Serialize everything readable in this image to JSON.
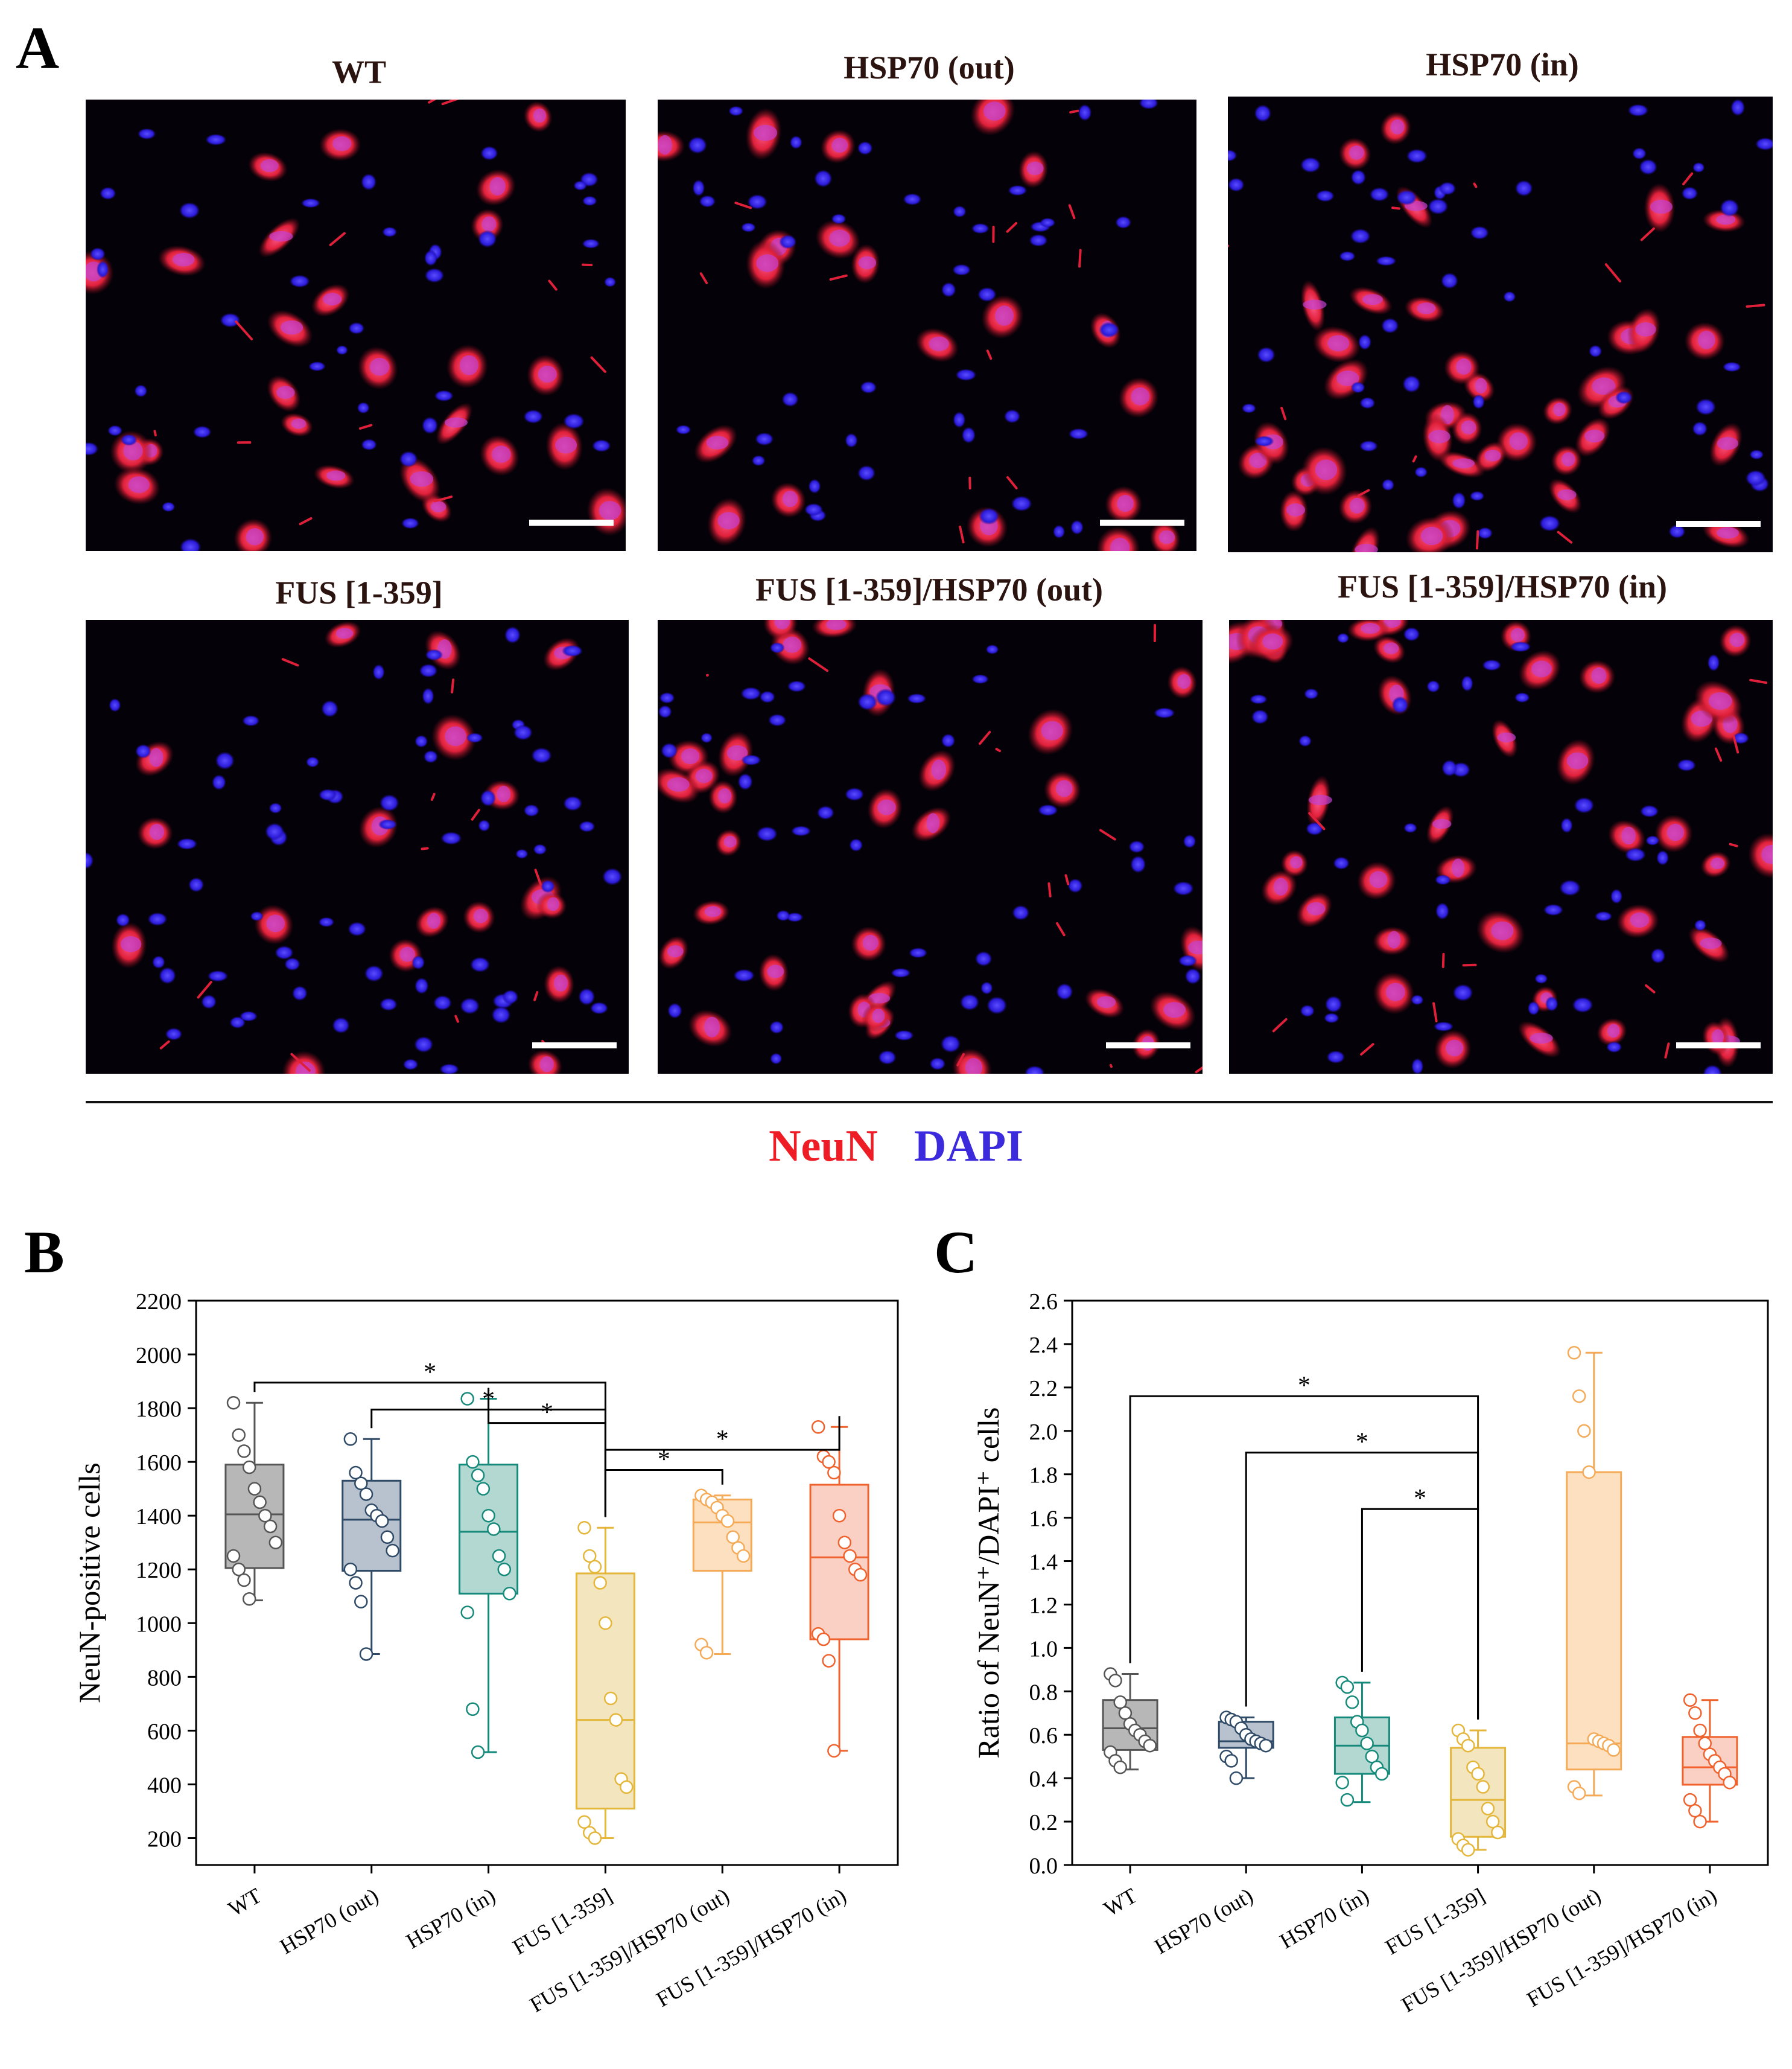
{
  "panel_a": {
    "letter": "A",
    "images": [
      {
        "title": "WT",
        "nucleus_count": 40,
        "neuron_count": 26,
        "seed": 11
      },
      {
        "title": "HSP70 (out)",
        "nucleus_count": 44,
        "neuron_count": 20,
        "seed": 23
      },
      {
        "title": "HSP70 (in)",
        "nucleus_count": 52,
        "neuron_count": 38,
        "seed": 37
      },
      {
        "title": "FUS [1-359]",
        "nucleus_count": 70,
        "neuron_count": 18,
        "seed": 41
      },
      {
        "title": "FUS [1-359]/HSP70 (out)",
        "nucleus_count": 50,
        "neuron_count": 30,
        "seed": 53
      },
      {
        "title": "FUS [1-359]/HSP70 (in)",
        "nucleus_count": 48,
        "neuron_count": 40,
        "seed": 67
      }
    ],
    "stain_red": "NeuN",
    "stain_blue": "DAPI",
    "colors": {
      "neun": "#ee1c25",
      "dapi": "#3b2bdc"
    }
  },
  "chart_data": [
    {
      "panel": "B",
      "type": "box",
      "ylabel": "NeuN-positive cells",
      "ylim": [
        100,
        2200
      ],
      "yticks": [
        200,
        400,
        600,
        800,
        1000,
        1200,
        1400,
        1600,
        1800,
        2000,
        2200
      ],
      "categories": [
        "WT",
        "HSP70 (out)",
        "HSP70 (in)",
        "FUS [1-359]",
        "FUS [1-359]/HSP70 (out)",
        "FUS [1-359]/HSP70 (in)"
      ],
      "colors": [
        "#555555",
        "#2e4a66",
        "#15897a",
        "#e4b63a",
        "#f5aa58",
        "#f0622d"
      ],
      "fills": [
        "#b7b7b7",
        "#b8c2cf",
        "#b3d8d1",
        "#f3e5bd",
        "#fde0c0",
        "#fbd0c4"
      ],
      "boxes": [
        {
          "min": 1085,
          "q1": 1205,
          "median": 1405,
          "q3": 1590,
          "max": 1820
        },
        {
          "min": 885,
          "q1": 1195,
          "median": 1385,
          "q3": 1530,
          "max": 1685
        },
        {
          "min": 520,
          "q1": 1110,
          "median": 1340,
          "q3": 1590,
          "max": 1835
        },
        {
          "min": 200,
          "q1": 310,
          "median": 640,
          "q3": 1185,
          "max": 1355
        },
        {
          "min": 885,
          "q1": 1195,
          "median": 1375,
          "q3": 1460,
          "max": 1475
        },
        {
          "min": 525,
          "q1": 940,
          "median": 1245,
          "q3": 1515,
          "max": 1730
        }
      ],
      "points": [
        [
          1820,
          1700,
          1640,
          1580,
          1500,
          1450,
          1400,
          1360,
          1300,
          1250,
          1200,
          1160,
          1090
        ],
        [
          1685,
          1560,
          1520,
          1480,
          1420,
          1400,
          1380,
          1320,
          1270,
          1200,
          1150,
          1080,
          885
        ],
        [
          1835,
          1600,
          1550,
          1500,
          1400,
          1350,
          1250,
          1200,
          1110,
          1040,
          680,
          520
        ],
        [
          1355,
          1250,
          1210,
          1150,
          1000,
          720,
          640,
          420,
          390,
          260,
          220,
          200
        ],
        [
          1475,
          1460,
          1450,
          1430,
          1400,
          1380,
          1320,
          1280,
          1250,
          920,
          890
        ],
        [
          1730,
          1620,
          1600,
          1560,
          1400,
          1300,
          1250,
          1200,
          1180,
          960,
          940,
          860,
          525
        ]
      ],
      "significance": [
        {
          "from": 0,
          "to": 3,
          "y": 1895,
          "label": "*"
        },
        {
          "from": 1,
          "to": 3,
          "y": 1795,
          "label": "*"
        },
        {
          "from": 2,
          "to": 3,
          "y": 1745,
          "label": "*"
        },
        {
          "from": 3,
          "to": 5,
          "y": 1645,
          "label": "*"
        },
        {
          "from": 3,
          "to": 4,
          "y": 1570,
          "label": "*"
        }
      ]
    },
    {
      "panel": "C",
      "type": "box",
      "ylabel": "Ratio of NeuN⁺/DAPI⁺ cells",
      "ylim": [
        0,
        2.6
      ],
      "yticks": [
        0.0,
        0.2,
        0.4,
        0.6,
        0.8,
        1.0,
        1.2,
        1.4,
        1.6,
        1.8,
        2.0,
        2.2,
        2.4,
        2.6
      ],
      "categories": [
        "WT",
        "HSP70 (out)",
        "HSP70 (in)",
        "FUS [1-359]",
        "FUS [1-359]/HSP70 (out)",
        "FUS [1-359]/HSP70 (in)"
      ],
      "colors": [
        "#555555",
        "#2e4a66",
        "#15897a",
        "#e4b63a",
        "#f5aa58",
        "#f0622d"
      ],
      "fills": [
        "#b7b7b7",
        "#b8c2cf",
        "#b3d8d1",
        "#f3e5bd",
        "#fde0c0",
        "#fbd0c4"
      ],
      "boxes": [
        {
          "min": 0.44,
          "q1": 0.53,
          "median": 0.63,
          "q3": 0.76,
          "max": 0.88
        },
        {
          "min": 0.4,
          "q1": 0.54,
          "median": 0.57,
          "q3": 0.66,
          "max": 0.68
        },
        {
          "min": 0.29,
          "q1": 0.42,
          "median": 0.55,
          "q3": 0.68,
          "max": 0.84
        },
        {
          "min": 0.07,
          "q1": 0.13,
          "median": 0.3,
          "q3": 0.54,
          "max": 0.62
        },
        {
          "min": 0.32,
          "q1": 0.44,
          "median": 0.56,
          "q3": 1.81,
          "max": 2.36
        },
        {
          "min": 0.2,
          "q1": 0.37,
          "median": 0.45,
          "q3": 0.59,
          "max": 0.76
        }
      ],
      "points": [
        [
          0.88,
          0.85,
          0.75,
          0.7,
          0.65,
          0.62,
          0.6,
          0.57,
          0.55,
          0.52,
          0.48,
          0.45
        ],
        [
          0.68,
          0.67,
          0.66,
          0.63,
          0.6,
          0.58,
          0.57,
          0.56,
          0.55,
          0.5,
          0.48,
          0.4
        ],
        [
          0.84,
          0.82,
          0.75,
          0.66,
          0.62,
          0.56,
          0.5,
          0.45,
          0.42,
          0.38,
          0.3
        ],
        [
          0.62,
          0.58,
          0.55,
          0.45,
          0.42,
          0.36,
          0.26,
          0.2,
          0.15,
          0.12,
          0.09,
          0.07
        ],
        [
          2.36,
          2.16,
          2.0,
          1.81,
          0.58,
          0.57,
          0.56,
          0.55,
          0.53,
          0.36,
          0.33
        ],
        [
          0.76,
          0.7,
          0.62,
          0.56,
          0.51,
          0.48,
          0.45,
          0.42,
          0.38,
          0.3,
          0.25,
          0.2
        ]
      ],
      "significance": [
        {
          "from": 0,
          "to": 3,
          "y": 2.16,
          "label": "*"
        },
        {
          "from": 1,
          "to": 3,
          "y": 1.9,
          "label": "*"
        },
        {
          "from": 2,
          "to": 3,
          "y": 1.64,
          "label": "*"
        }
      ]
    }
  ]
}
